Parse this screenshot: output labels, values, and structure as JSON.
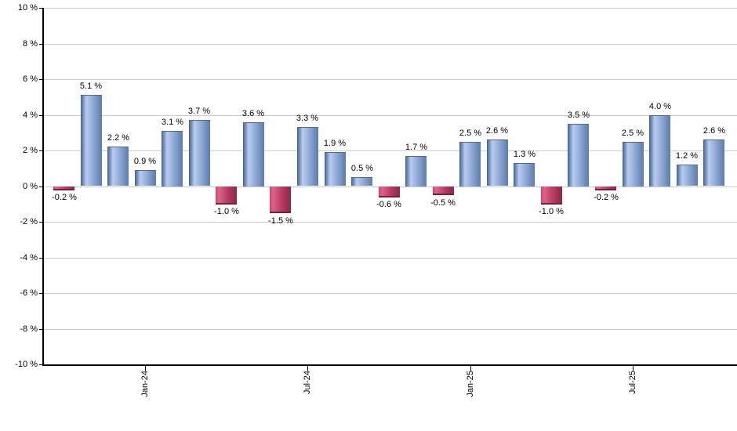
{
  "chart_data": {
    "type": "bar",
    "title": "",
    "xlabel": "",
    "ylabel": "",
    "ylim": [
      -10,
      10
    ],
    "grid": true,
    "values": [
      -0.2,
      5.1,
      2.2,
      0.9,
      3.1,
      3.7,
      -1.0,
      3.6,
      -1.5,
      3.3,
      1.9,
      0.5,
      -0.6,
      1.7,
      -0.5,
      2.5,
      2.6,
      1.3,
      -1.0,
      3.5,
      -0.2,
      2.5,
      4.0,
      1.2,
      2.6
    ],
    "bar_labels": [
      "-0.2 %",
      "5.1 %",
      "2.2 %",
      "0.9 %",
      "3.1 %",
      "3.7 %",
      "-1.0 %",
      "3.6 %",
      "-1.5 %",
      "3.3 %",
      "1.9 %",
      "0.5 %",
      "-0.6 %",
      "1.7 %",
      "-0.5 %",
      "2.5 %",
      "2.6 %",
      "1.3 %",
      "-1.0 %",
      "3.5 %",
      "-0.2 %",
      "2.5 %",
      "4.0 %",
      "1.2 %",
      "2.6 %"
    ],
    "y_ticks": [
      {
        "value": 10,
        "label": "10 %"
      },
      {
        "value": 8,
        "label": "8 %"
      },
      {
        "value": 6,
        "label": "6 %"
      },
      {
        "value": 4,
        "label": "4 %"
      },
      {
        "value": 2,
        "label": "2 %"
      },
      {
        "value": 0,
        "label": "0 %"
      },
      {
        "value": -2,
        "label": "-2 %"
      },
      {
        "value": -4,
        "label": "-4 %"
      },
      {
        "value": -6,
        "label": "-6 %"
      },
      {
        "value": -8,
        "label": "-8 %"
      },
      {
        "value": -10,
        "label": "-10 %"
      }
    ],
    "x_ticks": [
      {
        "bar_index": 3,
        "label": "Jan-24"
      },
      {
        "bar_index": 9,
        "label": "Jul-24"
      },
      {
        "bar_index": 15,
        "label": "Jan-25"
      },
      {
        "bar_index": 21,
        "label": "Jul-25"
      }
    ],
    "legend": null,
    "colors": {
      "positive_bar": "#87a3d2",
      "positive_gradient": [
        "#3f6096",
        "#b8ccee",
        "#93add9",
        "#5b7cab"
      ],
      "negative_bar": "#c23a5e",
      "negative_gradient": [
        "#d4426b",
        "#e06287",
        "#b63b60",
        "#8e2746"
      ],
      "gridline": "#cccccc",
      "axis": "#000000",
      "label_text": "#000000"
    }
  }
}
